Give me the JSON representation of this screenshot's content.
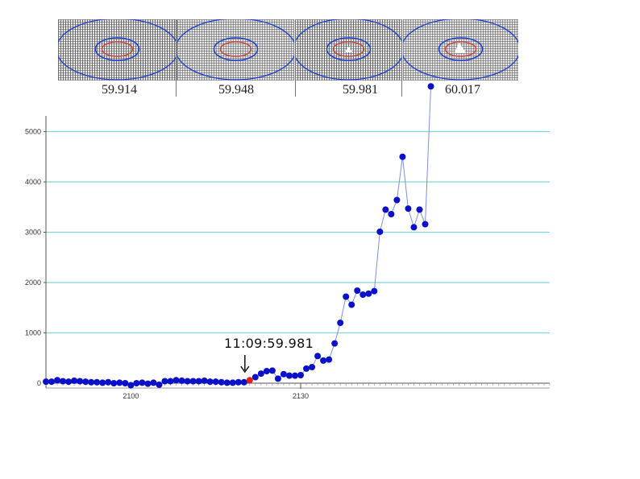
{
  "frames": [
    {
      "label": "59.914",
      "spot": "none"
    },
    {
      "label": "59.948",
      "spot": "none"
    },
    {
      "label": "59.981",
      "spot": "small"
    },
    {
      "label": "60.017",
      "spot": "large"
    }
  ],
  "colors": {
    "ring_blue": "#1f3fd0",
    "ring_red": "#d23a3a",
    "grid": "#7fd6dd",
    "point": "#0a10c8",
    "highlight_point": "#e31b1b",
    "line": "#7f8ee6",
    "axis": "#555555"
  },
  "annotation": {
    "text": "11:09:59.981",
    "x": 2121
  },
  "chart_data": {
    "type": "line",
    "title": "",
    "xlabel": "",
    "ylabel": "",
    "xlim": [
      2085,
      2174
    ],
    "ylim": [
      0,
      5600
    ],
    "xticks": [
      2100,
      2130
    ],
    "yticks": [
      0,
      1000,
      2000,
      3000,
      4000,
      5000
    ],
    "grid": true,
    "highlight_x": 2121,
    "series": [
      {
        "x": [
          2085,
          2086,
          2087,
          2088,
          2089,
          2090,
          2091,
          2092,
          2093,
          2094,
          2095,
          2096,
          2097,
          2098,
          2099,
          2100,
          2101,
          2102,
          2103,
          2104,
          2105,
          2106,
          2107,
          2108,
          2109,
          2110,
          2111,
          2112,
          2113,
          2114,
          2115,
          2116,
          2117,
          2118,
          2119,
          2120,
          2121,
          2122,
          2123,
          2124,
          2125,
          2126,
          2127,
          2128,
          2129,
          2130,
          2131,
          2132,
          2133,
          2134,
          2135,
          2136,
          2137,
          2138,
          2139,
          2140,
          2141,
          2142,
          2143,
          2144,
          2145,
          2146,
          2147,
          2148,
          2149,
          2150,
          2151,
          2152,
          2153
        ],
        "y": [
          30,
          30,
          60,
          40,
          30,
          50,
          40,
          30,
          20,
          20,
          10,
          20,
          0,
          10,
          0,
          -40,
          0,
          10,
          -10,
          10,
          -30,
          40,
          40,
          60,
          50,
          40,
          40,
          40,
          50,
          30,
          30,
          20,
          10,
          10,
          20,
          20,
          60,
          120,
          190,
          240,
          250,
          90,
          180,
          150,
          150,
          160,
          290,
          320,
          540,
          450,
          470,
          790,
          1200,
          1720,
          1560,
          1840,
          1760,
          1780,
          1830,
          3010,
          3450,
          3360,
          3640,
          4500,
          3470,
          3100,
          3450,
          3160,
          5900
        ]
      }
    ]
  }
}
